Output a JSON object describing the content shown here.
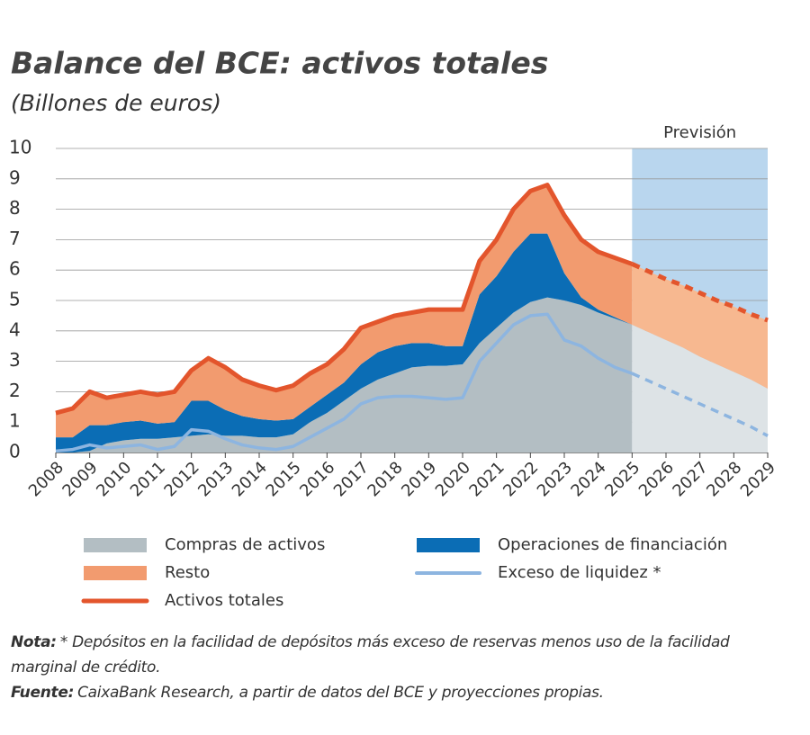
{
  "chart_data": {
    "type": "area",
    "title": "Balance del BCE: activos totales",
    "subtitle": "(Billones de euros)",
    "x": [
      2008,
      2008.5,
      2009,
      2009.5,
      2010,
      2010.5,
      2011,
      2011.5,
      2012,
      2012.5,
      2013,
      2013.5,
      2014,
      2014.5,
      2015,
      2015.5,
      2016,
      2016.5,
      2017,
      2017.5,
      2018,
      2018.5,
      2019,
      2019.5,
      2020,
      2020.5,
      2021,
      2021.5,
      2022,
      2022.5,
      2023,
      2023.5,
      2024,
      2024.5,
      2025,
      2025.5,
      2026,
      2026.5,
      2027,
      2027.5,
      2028,
      2028.5,
      2029
    ],
    "xlim": [
      2008,
      2029
    ],
    "xticks": [
      2008,
      2009,
      2010,
      2011,
      2012,
      2013,
      2014,
      2015,
      2016,
      2017,
      2018,
      2019,
      2020,
      2021,
      2022,
      2023,
      2024,
      2025,
      2026,
      2027,
      2028,
      2029
    ],
    "ylim": [
      0,
      10
    ],
    "yticks": [
      0,
      1,
      2,
      3,
      4,
      5,
      6,
      7,
      8,
      9,
      10
    ],
    "grid": true,
    "forecast": {
      "label": "Previsión",
      "start": 2025,
      "end": 2029,
      "color": "#b9d6ee"
    },
    "series": [
      {
        "name": "Compras de activos",
        "kind": "area",
        "color": "#b3bec3",
        "forecast_color": "#dde3e6",
        "values": [
          0,
          0,
          0.05,
          0.3,
          0.4,
          0.45,
          0.45,
          0.5,
          0.55,
          0.6,
          0.55,
          0.55,
          0.5,
          0.5,
          0.6,
          1.0,
          1.3,
          1.7,
          2.1,
          2.4,
          2.6,
          2.8,
          2.85,
          2.85,
          2.9,
          3.6,
          4.1,
          4.6,
          4.95,
          5.1,
          5.0,
          4.85,
          4.6,
          4.4,
          4.2,
          3.95,
          3.7,
          3.45,
          3.15,
          2.9,
          2.65,
          2.4,
          2.1
        ]
      },
      {
        "name": "Operaciones de financiación",
        "kind": "area",
        "color": "#0b6db5",
        "forecast_color": "#0b6db5",
        "values": [
          0.5,
          0.5,
          0.85,
          0.6,
          0.6,
          0.6,
          0.5,
          0.5,
          1.15,
          1.1,
          0.85,
          0.65,
          0.6,
          0.55,
          0.5,
          0.5,
          0.6,
          0.6,
          0.8,
          0.9,
          0.9,
          0.8,
          0.75,
          0.65,
          0.6,
          1.6,
          1.7,
          2.0,
          2.25,
          2.1,
          0.9,
          0.25,
          0.1,
          0.05,
          0,
          0,
          0,
          0,
          0,
          0,
          0,
          0,
          0
        ]
      },
      {
        "name": "Resto",
        "kind": "area",
        "color": "#f29b6f",
        "forecast_color": "#f7b890",
        "values": [
          0.8,
          0.95,
          1.1,
          0.9,
          0.9,
          0.95,
          0.95,
          1.0,
          1.0,
          1.4,
          1.4,
          1.2,
          1.1,
          1.0,
          1.1,
          1.1,
          1.0,
          1.1,
          1.2,
          1.0,
          1.0,
          1.0,
          1.1,
          1.2,
          1.2,
          1.1,
          1.2,
          1.4,
          1.4,
          1.6,
          1.9,
          1.9,
          1.9,
          1.95,
          2.0,
          2.0,
          2.0,
          2.05,
          2.1,
          2.1,
          2.15,
          2.15,
          2.25
        ]
      },
      {
        "name": "Exceso de liquidez *",
        "kind": "line",
        "color": "#8db5e0",
        "values": [
          0.05,
          0.1,
          0.25,
          0.15,
          0.2,
          0.25,
          0.1,
          0.2,
          0.75,
          0.7,
          0.45,
          0.25,
          0.15,
          0.1,
          0.2,
          0.5,
          0.8,
          1.1,
          1.6,
          1.8,
          1.85,
          1.85,
          1.8,
          1.75,
          1.8,
          3.0,
          3.6,
          4.2,
          4.5,
          4.55,
          3.7,
          3.5,
          3.1,
          2.8,
          2.6,
          2.35,
          2.1,
          1.85,
          1.6,
          1.35,
          1.1,
          0.85,
          0.55
        ]
      },
      {
        "name": "Activos totales",
        "kind": "line",
        "color": "#e3552c",
        "values": [
          1.3,
          1.45,
          2.0,
          1.8,
          1.9,
          2.0,
          1.9,
          2.0,
          2.7,
          3.1,
          2.8,
          2.4,
          2.2,
          2.05,
          2.2,
          2.6,
          2.9,
          3.4,
          4.1,
          4.3,
          4.5,
          4.6,
          4.7,
          4.7,
          4.7,
          6.3,
          7.0,
          8.0,
          8.6,
          8.8,
          7.8,
          7.0,
          6.6,
          6.4,
          6.2,
          5.95,
          5.7,
          5.5,
          5.25,
          5.0,
          4.8,
          4.55,
          4.35
        ]
      }
    ]
  },
  "notes": [
    {
      "label": "Nota:",
      "text": "* Depósitos en la facilidad de depósitos más exceso de reservas menos uso de la facilidad marginal de crédito."
    },
    {
      "label": "Fuente:",
      "text": "CaixaBank Research, a partir de datos del BCE y proyecciones propias."
    }
  ]
}
